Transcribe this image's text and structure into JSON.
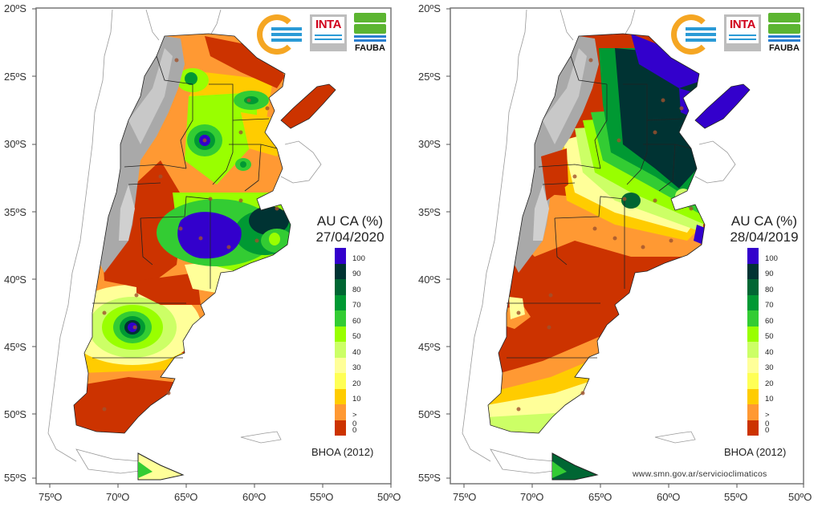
{
  "chart_data": [
    {
      "type": "heatmap",
      "title": "AU CA (%)",
      "date": "27/04/2020",
      "source_note": "BHOA (2012)",
      "xlabel": "",
      "ylabel": "",
      "x_ticks": [
        "75ºO",
        "70ºO",
        "65ºO",
        "60ºO",
        "55ºO",
        "50ºO"
      ],
      "y_ticks": [
        "20ºS",
        "25ºS",
        "30ºS",
        "35ºS",
        "40ºS",
        "45ºS",
        "50ºS",
        "55ºS"
      ],
      "xlim": [
        -75,
        -50
      ],
      "ylim": [
        -55,
        -20
      ],
      "legend": {
        "placement": "right",
        "classes": [
          "0",
          "> 0",
          "10",
          "20",
          "30",
          "40",
          "50",
          "60",
          "70",
          "80",
          "90",
          "100"
        ],
        "tick_labels": [
          "0",
          "> 0",
          "10",
          "20",
          "30",
          "40",
          "50",
          "60",
          "70",
          "80",
          "90",
          "100"
        ]
      },
      "description": "Useful soil water (AU CA %) over Argentina; very dry (0) in west Patagonia/Cuyo and NE Mesopotamia, wet (90-100) around Buenos Aires and central Chubut"
    },
    {
      "type": "heatmap",
      "title": "AU CA (%)",
      "date": "28/04/2019",
      "source_note": "BHOA (2012)",
      "xlabel": "",
      "ylabel": "",
      "x_ticks": [
        "75ºO",
        "70ºO",
        "65ºO",
        "60ºO",
        "55ºO",
        "50ºO"
      ],
      "y_ticks": [
        "20ºS",
        "25ºS",
        "30ºS",
        "35ºS",
        "40ºS",
        "45ºS",
        "50ºS",
        "55ºS"
      ],
      "xlim": [
        -75,
        -50
      ],
      "ylim": [
        -55,
        -20
      ],
      "legend": {
        "placement": "right",
        "classes": [
          "0",
          "> 0",
          "10",
          "20",
          "30",
          "40",
          "50",
          "60",
          "70",
          "80",
          "90",
          "100"
        ],
        "tick_labels": [
          "0",
          "> 0",
          "10",
          "20",
          "30",
          "40",
          "50",
          "60",
          "70",
          "80",
          "90",
          "100"
        ]
      },
      "description": "Wet (90-100) across northeast and pampas, dry (0) across Patagonia"
    }
  ],
  "legend_colors": [
    "#cc3300",
    "#ff9933",
    "#ffcc00",
    "#ffff55",
    "#ffff99",
    "#ccff66",
    "#99ff00",
    "#33cc33",
    "#009933",
    "#006633",
    "#003333",
    "#3300cc"
  ],
  "legend_labels": [
    "0",
    "> 0",
    "10",
    "20",
    "30",
    "40",
    "50",
    "60",
    "70",
    "80",
    "90",
    "100"
  ],
  "left": {
    "title": "AU CA (%)",
    "date": "27/04/2020",
    "source": "BHOA (2012)"
  },
  "right": {
    "title": "AU CA (%)",
    "date": "28/04/2019",
    "source": "BHOA (2012)",
    "url": "www.smn.gov.ar/servicioclimaticos"
  },
  "logos": {
    "inta": "INTA",
    "fauba": "FAUBA"
  },
  "axes": {
    "x_ticks": [
      "75ºO",
      "70ºO",
      "65ºO",
      "60ºO",
      "55ºO",
      "50ºO"
    ],
    "y_ticks": [
      "20ºS",
      "25ºS",
      "30ºS",
      "35ºS",
      "40ºS",
      "45ºS",
      "50ºS",
      "55ºS"
    ]
  }
}
